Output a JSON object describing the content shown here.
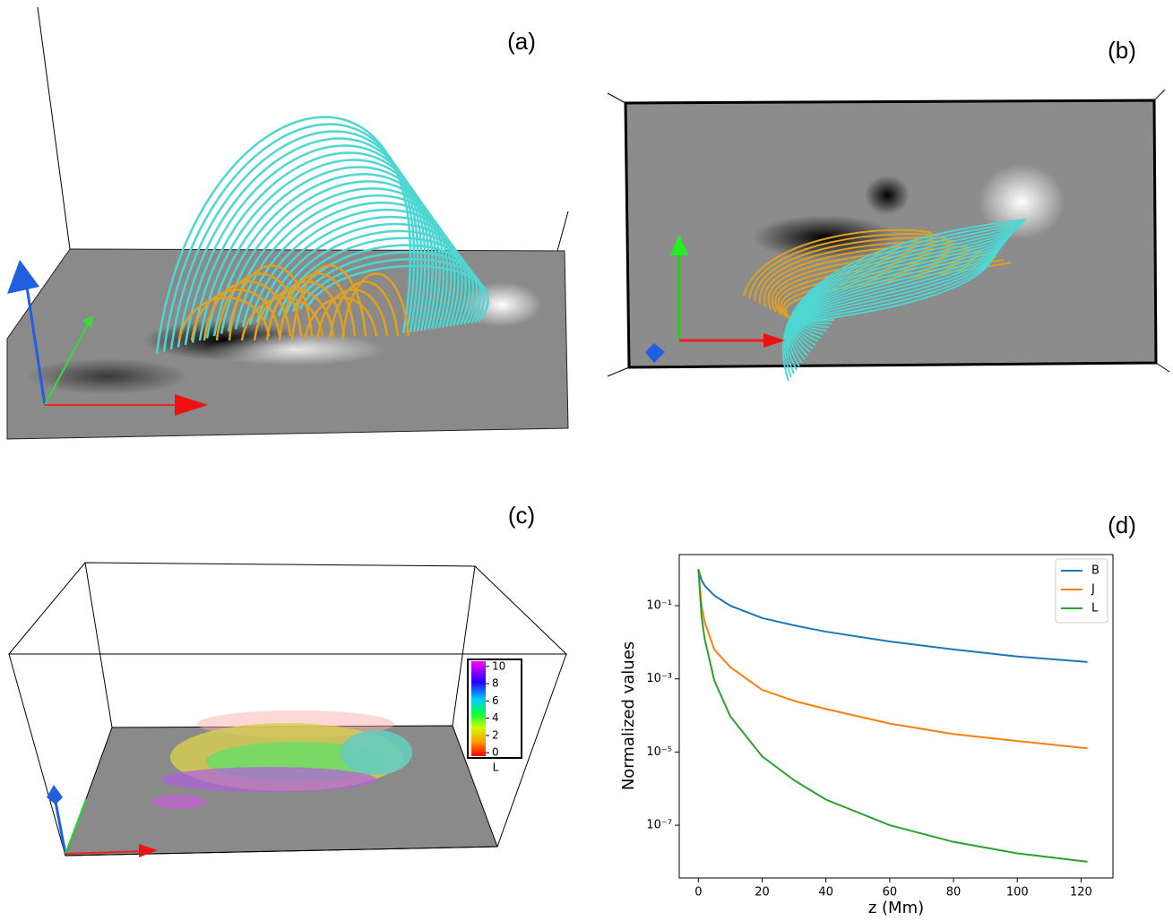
{
  "panel_labels": [
    "(a)",
    "(b)",
    "(c)",
    "(d)"
  ],
  "colorbar": {
    "ticks": [
      0,
      2,
      4,
      6,
      8,
      10
    ],
    "range": [
      -0.4,
      10.6
    ],
    "label": "L"
  },
  "chart_data": {
    "type": "line",
    "xlabel": "z (Mm)",
    "ylabel": "Normalized values",
    "x": [
      0,
      1,
      2,
      5,
      10,
      20,
      30,
      40,
      60,
      80,
      100,
      122
    ],
    "series": [
      {
        "name": "B",
        "color": "#1f77b4",
        "values": [
          1,
          0.5,
          0.35,
          0.19,
          0.1,
          0.046,
          0.029,
          0.0195,
          0.0105,
          0.0064,
          0.0041,
          0.0029
        ]
      },
      {
        "name": "J",
        "color": "#ff7f0e",
        "values": [
          1,
          0.1,
          0.035,
          0.0063,
          0.0021,
          0.0005,
          0.00025,
          0.00015,
          6e-05,
          3.1e-05,
          2e-05,
          1.26e-05
        ]
      },
      {
        "name": "L",
        "color": "#2ca02c",
        "values": [
          1,
          0.05,
          0.012,
          0.0009,
          9.5e-05,
          7.6e-06,
          1.7e-06,
          5e-07,
          1e-07,
          3.5e-08,
          1.7e-08,
          1e-08
        ]
      }
    ],
    "xlim": [
      -6,
      130
    ],
    "xticks": [
      0,
      20,
      40,
      60,
      80,
      100,
      120
    ],
    "ylim": [
      3.6e-09,
      2.5
    ],
    "log_y": true,
    "yticks": [
      {
        "value": 0.1,
        "label": "10⁻¹"
      },
      {
        "value": 0.001,
        "label": "10⁻³"
      },
      {
        "value": 1e-05,
        "label": "10⁻⁵"
      },
      {
        "value": 1e-07,
        "label": "10⁻⁷"
      }
    ],
    "legend": "upper right"
  }
}
